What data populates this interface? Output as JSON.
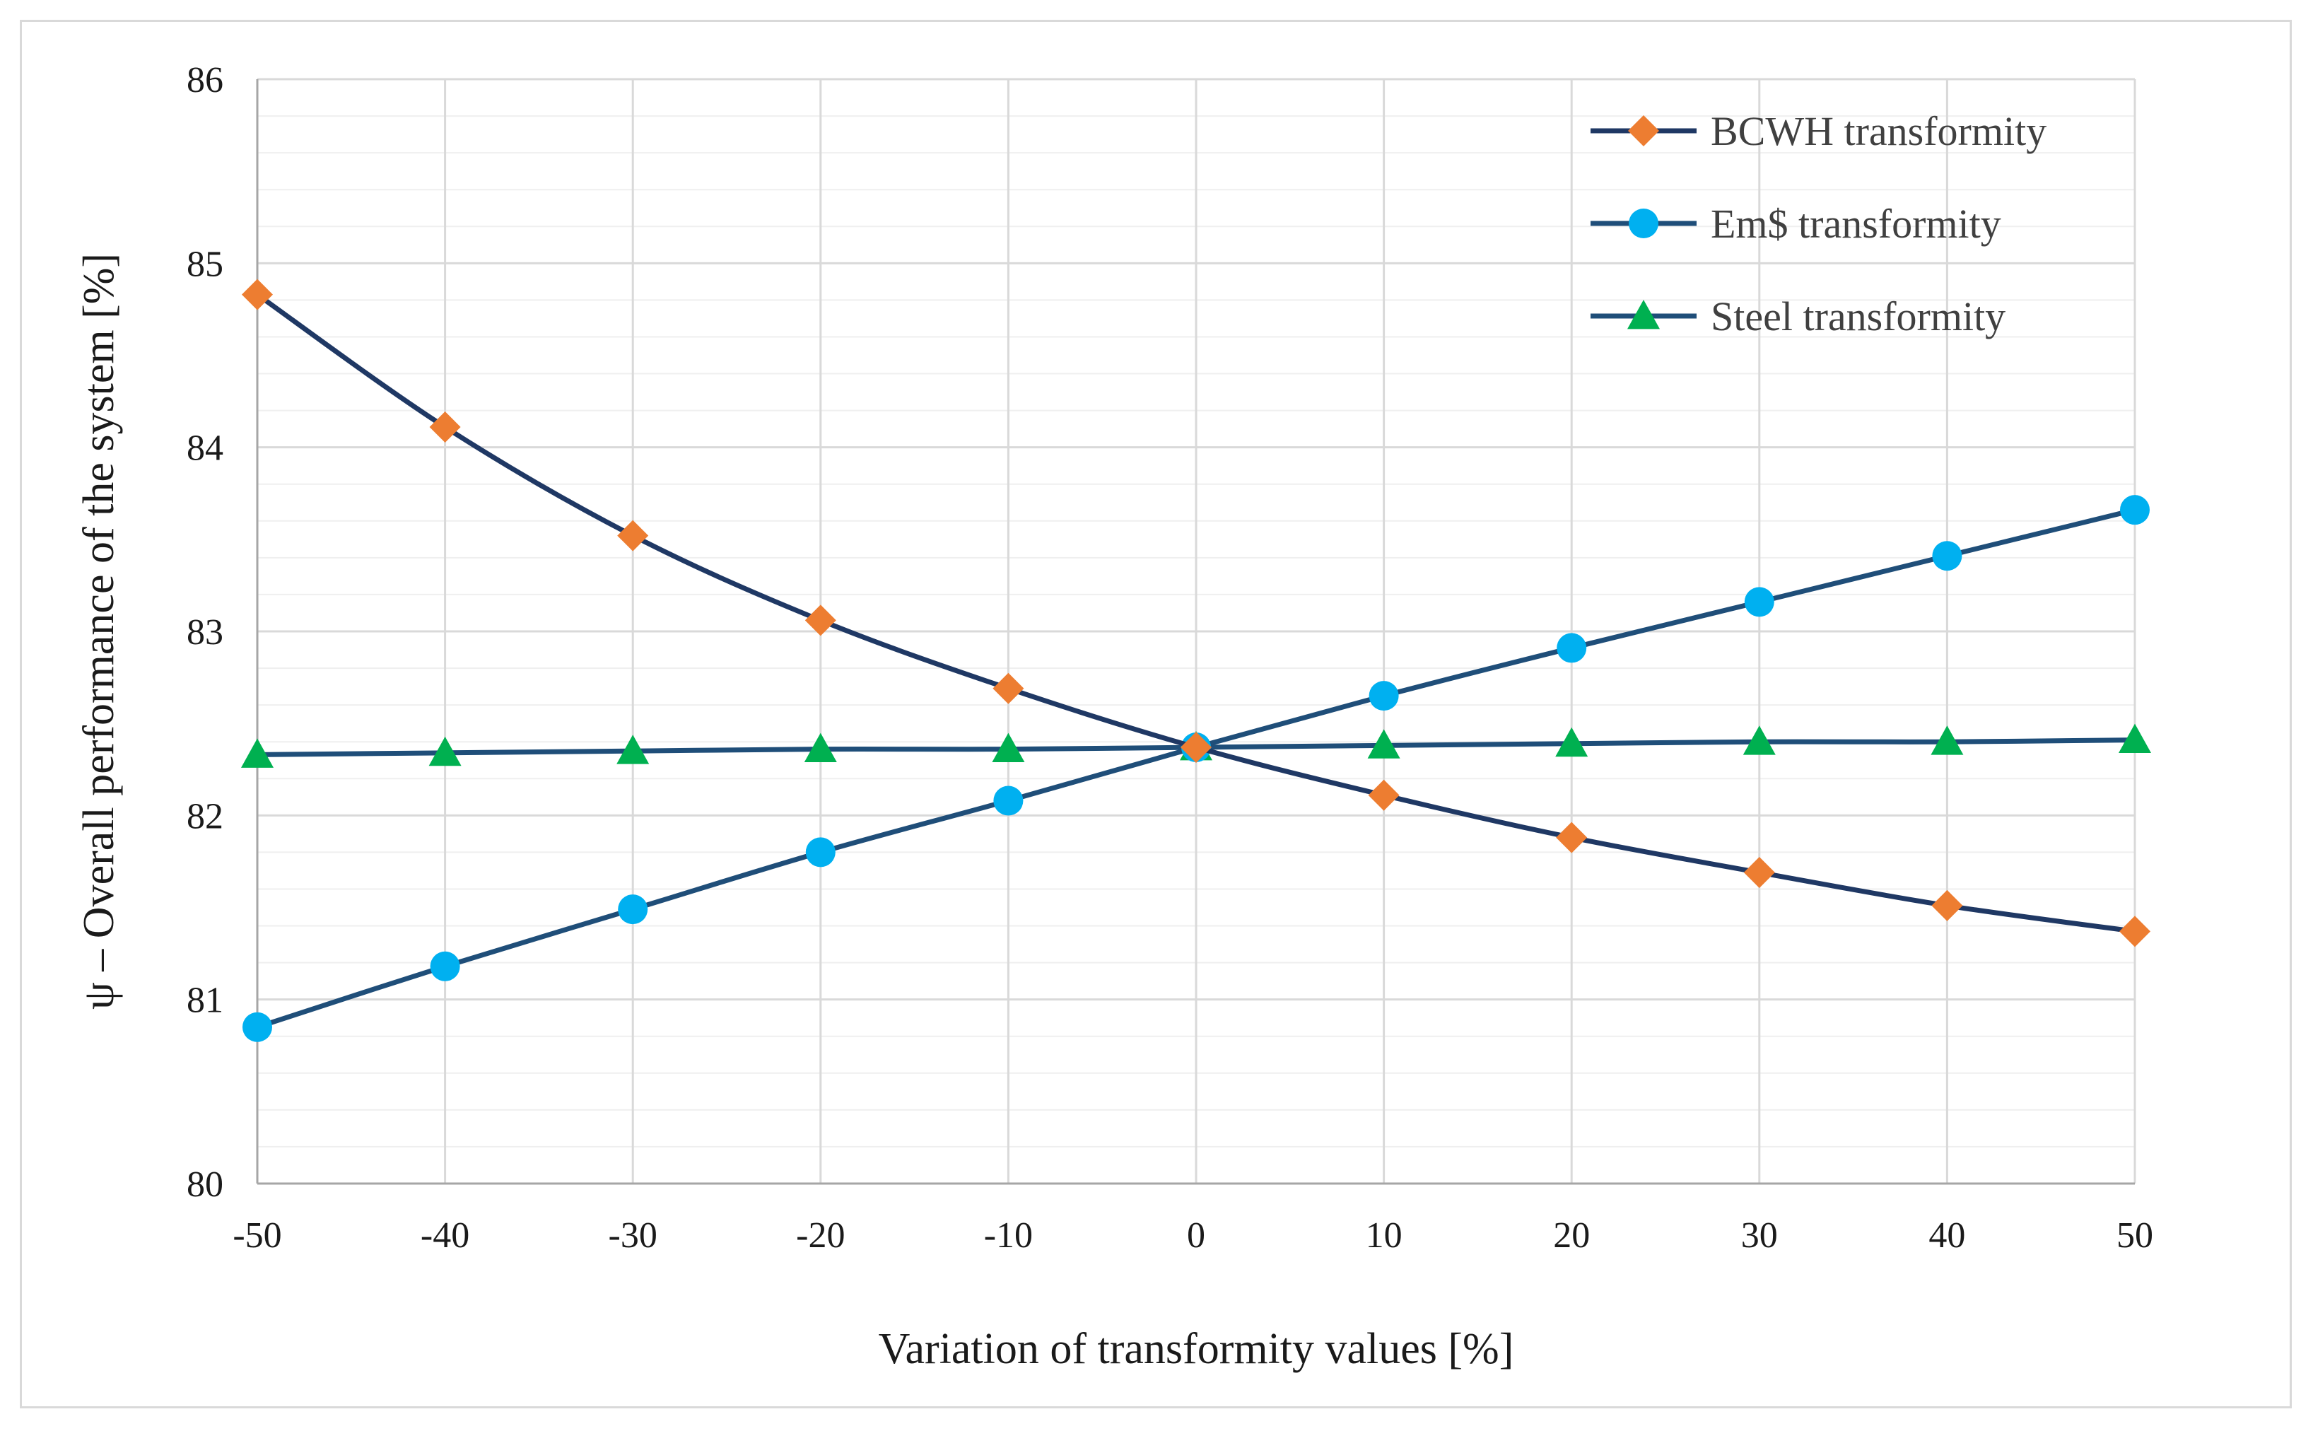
{
  "chart_data": {
    "type": "line",
    "title": "",
    "xlabel": "Variation of transformity values [%]",
    "ylabel": "ψ – Overall performance of the system [%]",
    "x": [
      -50,
      -40,
      -30,
      -20,
      -10,
      0,
      10,
      20,
      30,
      40,
      50
    ],
    "xlim": [
      -50,
      50
    ],
    "ylim": [
      80,
      86
    ],
    "xticks": [
      -50,
      -40,
      -30,
      -20,
      -10,
      0,
      10,
      20,
      30,
      40,
      50
    ],
    "yticks": [
      80,
      81,
      82,
      83,
      84,
      85,
      86
    ],
    "xtick_labels": [
      "-50",
      "-40",
      "-30",
      "-20",
      "-10",
      "0",
      "10",
      "20",
      "30",
      "40",
      "50"
    ],
    "ytick_labels": [
      "80",
      "81",
      "82",
      "83",
      "84",
      "85",
      "86"
    ],
    "grid": true,
    "legend_position": "top-right",
    "series": [
      {
        "name": "BCWH transformity",
        "marker": "diamond",
        "marker_color": "#ED7D31",
        "line_color": "#1F3864",
        "values": [
          84.83,
          84.11,
          83.52,
          83.06,
          82.69,
          82.37,
          82.11,
          81.88,
          81.69,
          81.51,
          81.37
        ]
      },
      {
        "name": "Em$ transformity",
        "marker": "circle",
        "marker_color": "#00B0F0",
        "line_color": "#1F4E79",
        "values": [
          80.85,
          81.18,
          81.49,
          81.8,
          82.08,
          82.37,
          82.65,
          82.91,
          83.16,
          83.41,
          83.66
        ]
      },
      {
        "name": "Steel transformity",
        "marker": "triangle",
        "marker_color": "#00B050",
        "line_color": "#1F4E79",
        "values": [
          82.33,
          82.34,
          82.35,
          82.36,
          82.36,
          82.37,
          82.38,
          82.39,
          82.4,
          82.4,
          82.41
        ]
      }
    ]
  }
}
